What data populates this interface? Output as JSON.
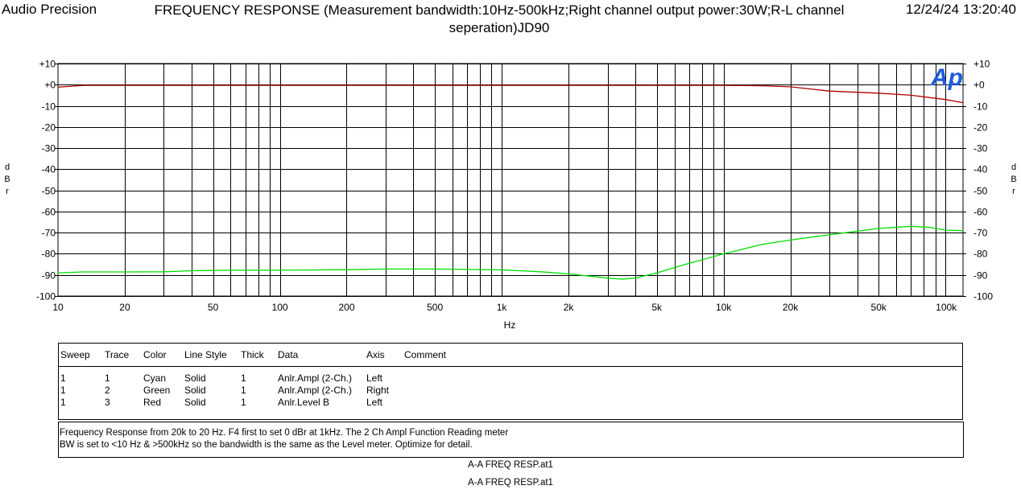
{
  "header": {
    "app": "Audio Precision",
    "title": "FREQUENCY RESPONSE  (Measurement bandwidth:10Hz-500kHz;Right channel output power:30W;R-L channel seperation)JD90",
    "timestamp": "12/24/24 13:20:40",
    "logo": "Ap"
  },
  "chart_data": {
    "type": "line",
    "title": "FREQUENCY RESPONSE  (Measurement bandwidth:10Hz-500kHz;Right channel output power:30W;R-L channel seperation)JD90",
    "xlabel": "Hz",
    "ylabel_left": "dBr",
    "ylabel_right": "dBr",
    "x_scale": "log",
    "xlim": [
      10,
      120000
    ],
    "ylim": [
      -100,
      10
    ],
    "grid": true,
    "x_ticks": [
      {
        "v": 10,
        "l": "10"
      },
      {
        "v": 20,
        "l": "20"
      },
      {
        "v": 50,
        "l": "50"
      },
      {
        "v": 100,
        "l": "100"
      },
      {
        "v": 200,
        "l": "200"
      },
      {
        "v": 500,
        "l": "500"
      },
      {
        "v": 1000,
        "l": "1k"
      },
      {
        "v": 2000,
        "l": "2k"
      },
      {
        "v": 5000,
        "l": "5k"
      },
      {
        "v": 10000,
        "l": "10k"
      },
      {
        "v": 20000,
        "l": "20k"
      },
      {
        "v": 50000,
        "l": "50k"
      },
      {
        "v": 100000,
        "l": "100k"
      }
    ],
    "y_ticks": [
      {
        "v": 10,
        "l": "+10"
      },
      {
        "v": 0,
        "l": "+0"
      },
      {
        "v": -10,
        "l": "-10"
      },
      {
        "v": -20,
        "l": "-20"
      },
      {
        "v": -30,
        "l": "-30"
      },
      {
        "v": -40,
        "l": "-40"
      },
      {
        "v": -50,
        "l": "-50"
      },
      {
        "v": -60,
        "l": "-60"
      },
      {
        "v": -70,
        "l": "-70"
      },
      {
        "v": -80,
        "l": "-80"
      },
      {
        "v": -90,
        "l": "-90"
      },
      {
        "v": -100,
        "l": "-100"
      }
    ],
    "series": [
      {
        "color": "#b00000",
        "axis": "left",
        "x": [
          10,
          13,
          20,
          50,
          100,
          200,
          500,
          1000,
          2000,
          5000,
          10000,
          15000,
          20000,
          30000,
          50000,
          70000,
          100000,
          120000
        ],
        "y": [
          -1.2,
          -0.3,
          -0.3,
          -0.3,
          -0.3,
          -0.3,
          -0.3,
          -0.3,
          -0.3,
          -0.3,
          -0.3,
          -0.5,
          -1.0,
          -3.0,
          -4.0,
          -5.0,
          -7.0,
          -8.5
        ]
      },
      {
        "color": "#00dd00",
        "axis": "right",
        "x": [
          10,
          13,
          20,
          30,
          40,
          60,
          100,
          200,
          300,
          500,
          700,
          1000,
          1500,
          2000,
          3000,
          3500,
          4000,
          5000,
          7000,
          10000,
          15000,
          20000,
          30000,
          50000,
          70000,
          85000,
          100000,
          120000
        ],
        "y": [
          -89.0,
          -88.6,
          -88.6,
          -88.5,
          -88.0,
          -87.8,
          -87.8,
          -87.5,
          -87.2,
          -87.2,
          -87.4,
          -87.6,
          -88.5,
          -89.5,
          -91.5,
          -92.0,
          -91.5,
          -89.0,
          -84.5,
          -80.0,
          -75.5,
          -73.5,
          -71.0,
          -68.0,
          -67.0,
          -67.5,
          -68.8,
          -69.0
        ]
      }
    ]
  },
  "legend": {
    "headers": [
      "Sweep",
      "Trace",
      "Color",
      "Line Style",
      "Thick",
      "Data",
      "Axis",
      "Comment"
    ],
    "rows": [
      [
        "1",
        "1",
        "Cyan",
        "Solid",
        "1",
        "Anlr.Ampl (2-Ch.)",
        "Left",
        ""
      ],
      [
        "1",
        "2",
        "Green",
        "Solid",
        "1",
        "Anlr.Ampl (2-Ch.)",
        "Right",
        ""
      ],
      [
        "1",
        "3",
        "Red",
        "Solid",
        "1",
        "Anlr.Level B",
        "Left",
        ""
      ]
    ]
  },
  "comment": {
    "line1": "Frequency Response from 20k to 20 Hz.  F4 first to set 0 dBr at 1kHz.  The 2 Ch Ampl Function Reading meter",
    "line2": "BW is set to <10 Hz & >500kHz so the bandwidth is the same as the Level meter.  Optimize for detail."
  },
  "files": [
    "A-A FREQ RESP.at1",
    "A-A FREQ RESP.at1"
  ]
}
